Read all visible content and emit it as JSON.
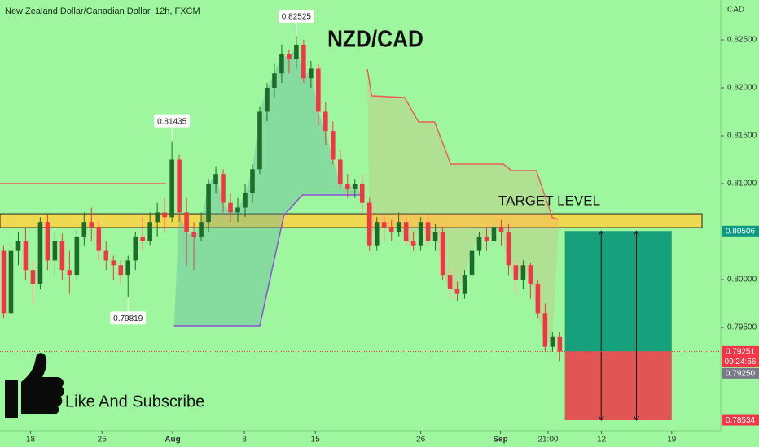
{
  "header": {
    "symbol": "New Zealand Dollar/Canadian Dollar, 12h, FXCM",
    "currency": "CAD"
  },
  "chart_data": {
    "type": "candlestick",
    "title": "NZD/CAD",
    "up_color": "#1f6b2c",
    "down_color": "#f23645",
    "open": [
      0.803,
      0.7965,
      0.803,
      0.804,
      0.801,
      0.7995,
      0.806,
      0.802,
      0.804,
      0.801,
      0.8005,
      0.8045,
      0.806,
      0.8055,
      0.803,
      0.802,
      0.8015,
      0.8005,
      0.802,
      0.8045,
      0.804,
      0.806,
      0.807,
      0.8065,
      0.8125,
      0.807,
      0.805,
      0.8045,
      0.806,
      0.81,
      0.811,
      0.808,
      0.807,
      0.8075,
      0.809,
      0.8115,
      0.8175,
      0.82,
      0.8215,
      0.8235,
      0.823,
      0.8245,
      0.821,
      0.822,
      0.8175,
      0.8155,
      0.8125,
      0.81,
      0.8095,
      0.81,
      0.808,
      0.8035,
      0.806,
      0.8055,
      0.805,
      0.806,
      0.804,
      0.8035,
      0.806,
      0.804,
      0.805,
      0.8005,
      0.799,
      0.7985,
      0.8005,
      0.803,
      0.8045,
      0.804,
      0.8055,
      0.805,
      0.8015,
      0.8,
      0.8015,
      0.7995,
      0.7965,
      0.793,
      0.794
    ],
    "high": [
      0.8035,
      0.804,
      0.805,
      0.8055,
      0.802,
      0.8065,
      0.8068,
      0.805,
      0.8048,
      0.803,
      0.8052,
      0.807,
      0.8075,
      0.8062,
      0.804,
      0.8025,
      0.802,
      0.8025,
      0.805,
      0.8065,
      0.807,
      0.808,
      0.8085,
      0.81435,
      0.813,
      0.8085,
      0.806,
      0.807,
      0.8105,
      0.8118,
      0.8115,
      0.809,
      0.8085,
      0.81,
      0.812,
      0.818,
      0.8205,
      0.8225,
      0.8245,
      0.824,
      0.82525,
      0.825,
      0.8228,
      0.8225,
      0.8185,
      0.8165,
      0.8135,
      0.811,
      0.8105,
      0.811,
      0.8085,
      0.8065,
      0.8068,
      0.8062,
      0.807,
      0.8065,
      0.805,
      0.8065,
      0.8068,
      0.8058,
      0.8055,
      0.801,
      0.7998,
      0.801,
      0.8035,
      0.805,
      0.8055,
      0.806,
      0.8062,
      0.8058,
      0.802,
      0.802,
      0.8018,
      0.8,
      0.7975,
      0.7945,
      0.7945
    ],
    "low": [
      0.796,
      0.796,
      0.8015,
      0.8,
      0.7975,
      0.799,
      0.801,
      0.8005,
      0.8,
      0.7985,
      0.8,
      0.8035,
      0.804,
      0.802,
      0.801,
      0.8,
      0.7995,
      0.79819,
      0.801,
      0.803,
      0.8035,
      0.8045,
      0.805,
      0.806,
      0.806,
      0.8015,
      0.801,
      0.804,
      0.805,
      0.809,
      0.807,
      0.806,
      0.806,
      0.8065,
      0.808,
      0.811,
      0.8165,
      0.819,
      0.8205,
      0.8215,
      0.822,
      0.8205,
      0.82,
      0.816,
      0.814,
      0.812,
      0.8095,
      0.8085,
      0.8085,
      0.807,
      0.803,
      0.803,
      0.804,
      0.804,
      0.8045,
      0.8035,
      0.803,
      0.803,
      0.8035,
      0.803,
      0.8,
      0.798,
      0.7978,
      0.798,
      0.8,
      0.8025,
      0.803,
      0.8035,
      0.8035,
      0.8005,
      0.7985,
      0.799,
      0.798,
      0.796,
      0.7925,
      0.7925,
      0.7915
    ],
    "close": [
      0.7965,
      0.803,
      0.804,
      0.801,
      0.7995,
      0.806,
      0.802,
      0.804,
      0.801,
      0.8005,
      0.8045,
      0.806,
      0.8055,
      0.803,
      0.802,
      0.8015,
      0.8005,
      0.802,
      0.8045,
      0.804,
      0.806,
      0.807,
      0.8065,
      0.8125,
      0.807,
      0.805,
      0.8045,
      0.806,
      0.81,
      0.811,
      0.808,
      0.807,
      0.8075,
      0.809,
      0.8115,
      0.8175,
      0.82,
      0.8215,
      0.8235,
      0.823,
      0.8245,
      0.821,
      0.822,
      0.8175,
      0.8155,
      0.8125,
      0.81,
      0.8095,
      0.81,
      0.808,
      0.8035,
      0.806,
      0.8055,
      0.805,
      0.806,
      0.804,
      0.8035,
      0.806,
      0.804,
      0.805,
      0.8005,
      0.799,
      0.7985,
      0.8005,
      0.803,
      0.8045,
      0.804,
      0.8055,
      0.805,
      0.8015,
      0.8,
      0.8015,
      0.7995,
      0.7965,
      0.793,
      0.794,
      0.7925
    ],
    "ylim": [
      0.78424,
      0.82915
    ],
    "yticks": [
      {
        "value": 0.825,
        "label": "0.82500"
      },
      {
        "value": 0.82,
        "label": "0.82000"
      },
      {
        "value": 0.815,
        "label": "0.81500"
      },
      {
        "value": 0.81,
        "label": "0.81000"
      },
      {
        "value": 0.8,
        "label": "0.80000"
      },
      {
        "value": 0.795,
        "label": "0.79500"
      }
    ],
    "xlim": [
      -0.5,
      98
    ],
    "xticks": [
      {
        "value": 3.67,
        "label": "18"
      },
      {
        "value": 13.44,
        "label": "25"
      },
      {
        "value": 23.1,
        "label": "Aug"
      },
      {
        "value": 32.9,
        "label": "8"
      },
      {
        "value": 42.6,
        "label": "15"
      },
      {
        "value": 57,
        "label": "26"
      },
      {
        "value": 67.9,
        "label": "Sep"
      },
      {
        "value": 74.4,
        "label": "21:00"
      },
      {
        "value": 81.7,
        "label": "12"
      },
      {
        "value": 91.3,
        "label": "19"
      }
    ],
    "price_labels": [
      0.82525,
      0.81435,
      0.79819
    ],
    "zones": [
      {
        "low": 0.80542,
        "high": 0.80686,
        "color": "#f7d548",
        "label": "TARGET LEVEL"
      }
    ],
    "lines": [
      {
        "color": "#f05a5a",
        "x": [
          -0.5,
          22.2
        ],
        "y": [
          0.81,
          0.81
        ]
      },
      {
        "color": "#f05a5a",
        "fill": "rgba(240,150,110,0.22)",
        "x": [
          49.7,
          50.3,
          54.8,
          56.7,
          58.9,
          61.1,
          68.3,
          69.4,
          72.8,
          75,
          75.9
        ],
        "y": [
          0.82195,
          0.81915,
          0.81898,
          0.81644,
          0.81644,
          0.81203,
          0.81203,
          0.81136,
          0.81136,
          0.80644,
          0.80627
        ]
      },
      {
        "color": "#8e4fd6",
        "fill": "rgba(90,170,160,0.35)",
        "x": [
          23.3,
          35,
          38.3,
          40.8,
          48.9
        ],
        "y": [
          0.79517,
          0.79517,
          0.80669,
          0.80881,
          0.80881
        ]
      }
    ],
    "position": {
      "entry": 0.79251,
      "target": 0.80506,
      "stop": 0.78534,
      "x": [
        76.7,
        91.3
      ],
      "profit_color": "#17a07c",
      "loss_color": "#e25555"
    },
    "price_markers": [
      {
        "value": 0.80506,
        "label": "0.80506",
        "color": "#089981"
      },
      {
        "value": 0.79251,
        "label": "0.79251",
        "color": "#f23645",
        "countdown": "09:24:56"
      },
      {
        "value": 0.7925,
        "label": "0.79250",
        "color": "#787b86"
      },
      {
        "value": 0.78534,
        "label": "0.78534",
        "color": "#f23645"
      }
    ]
  },
  "footer": {
    "cta": "Like And Subscribe"
  }
}
